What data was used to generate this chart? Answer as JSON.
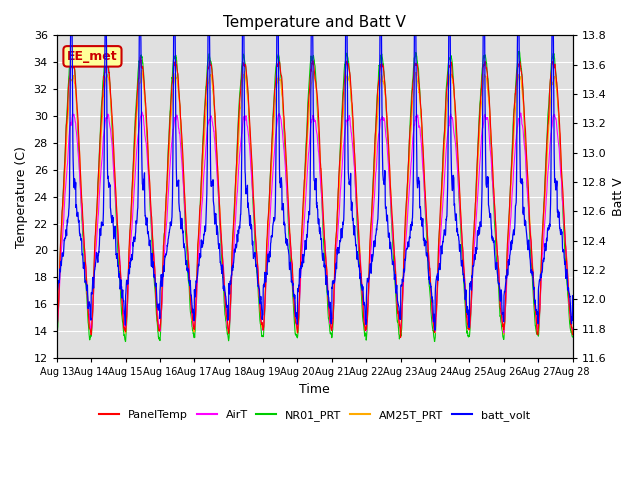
{
  "title": "Temperature and Batt V",
  "xlabel": "Time",
  "ylabel_left": "Temperature (C)",
  "ylabel_right": "Batt V",
  "ylim_left": [
    12,
    36
  ],
  "ylim_right": [
    11.6,
    13.8
  ],
  "xtick_labels": [
    "Aug 13",
    "Aug 14",
    "Aug 15",
    "Aug 16",
    "Aug 17",
    "Aug 18",
    "Aug 19",
    "Aug 20",
    "Aug 21",
    "Aug 22",
    "Aug 23",
    "Aug 24",
    "Aug 25",
    "Aug 26",
    "Aug 27",
    "Aug 28"
  ],
  "legend_labels": [
    "PanelTemp",
    "AirT",
    "NR01_PRT",
    "AM25T_PRT",
    "batt_volt"
  ],
  "legend_colors": [
    "#ff0000",
    "#ff00ff",
    "#00cc00",
    "#ffaa00",
    "#0000ff"
  ],
  "annotation_text": "EE_met",
  "annotation_color": "#cc0000",
  "annotation_bg": "#ffff99",
  "background_color": "#e0e0e0",
  "grid_color": "#ffffff",
  "n_days": 15,
  "pts_per_day": 144
}
